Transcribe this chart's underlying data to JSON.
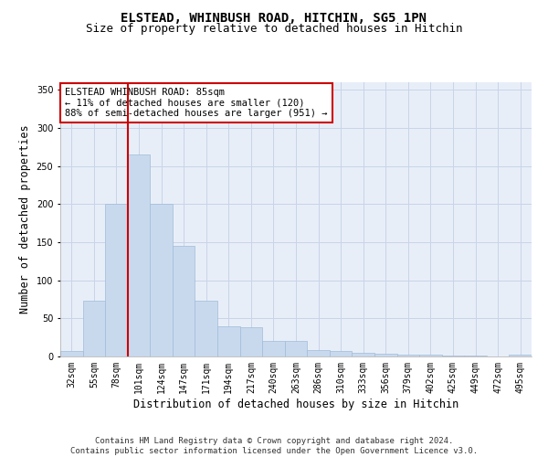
{
  "title": "ELSTEAD, WHINBUSH ROAD, HITCHIN, SG5 1PN",
  "subtitle": "Size of property relative to detached houses in Hitchin",
  "xlabel": "Distribution of detached houses by size in Hitchin",
  "ylabel": "Number of detached properties",
  "bar_color": "#c8d9ee",
  "bar_edge_color": "#a0bcd8",
  "grid_color": "#c8d4e8",
  "background_color": "#e8eef8",
  "categories": [
    "32sqm",
    "55sqm",
    "78sqm",
    "101sqm",
    "124sqm",
    "147sqm",
    "171sqm",
    "194sqm",
    "217sqm",
    "240sqm",
    "263sqm",
    "286sqm",
    "310sqm",
    "333sqm",
    "356sqm",
    "379sqm",
    "402sqm",
    "425sqm",
    "449sqm",
    "472sqm",
    "495sqm"
  ],
  "values": [
    7,
    73,
    200,
    265,
    200,
    145,
    73,
    40,
    38,
    20,
    20,
    8,
    7,
    5,
    4,
    3,
    2,
    1,
    1,
    0,
    2
  ],
  "ylim": [
    0,
    360
  ],
  "yticks": [
    0,
    50,
    100,
    150,
    200,
    250,
    300,
    350
  ],
  "vline_color": "#cc0000",
  "vline_pos": 2.5,
  "annotation_text": "ELSTEAD WHINBUSH ROAD: 85sqm\n← 11% of detached houses are smaller (120)\n88% of semi-detached houses are larger (951) →",
  "annotation_box_color": "white",
  "annotation_box_edge": "#cc0000",
  "footnote": "Contains HM Land Registry data © Crown copyright and database right 2024.\nContains public sector information licensed under the Open Government Licence v3.0.",
  "title_fontsize": 10,
  "subtitle_fontsize": 9,
  "xlabel_fontsize": 8.5,
  "ylabel_fontsize": 8.5,
  "tick_fontsize": 7,
  "annotation_fontsize": 7.5,
  "footnote_fontsize": 6.5
}
